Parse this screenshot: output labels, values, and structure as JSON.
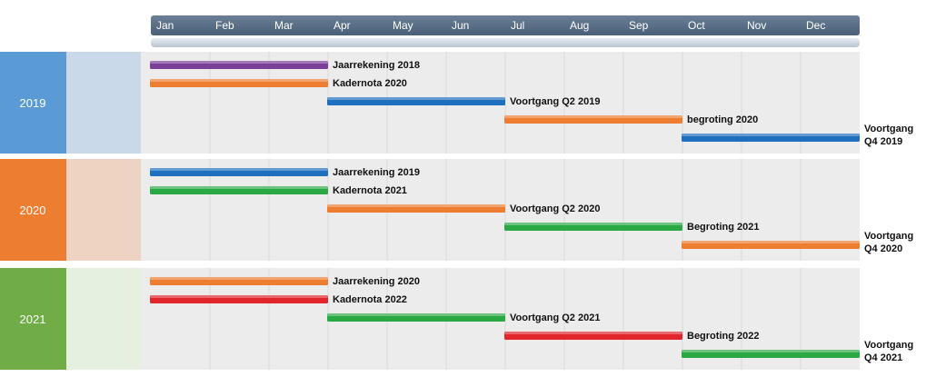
{
  "chart_data": {
    "type": "gantt",
    "months": [
      "Jan",
      "Feb",
      "Mar",
      "Apr",
      "May",
      "Jun",
      "Jul",
      "Aug",
      "Sep",
      "Oct",
      "Nov",
      "Dec"
    ],
    "colors": {
      "purple": "#7b3f98",
      "orange": "#ed7d31",
      "blue": "#1f6fbf",
      "green": "#2aa844",
      "red": "#e0262c",
      "header": "#4a5f78",
      "band_2019": "#5b9bd5",
      "band_2019_light": "#c9d9ea",
      "band_2020": "#ed7d31",
      "band_2020_light": "#eed3c2",
      "band_2021": "#70ad47",
      "band_2021_light": "#e6f0e0"
    },
    "groups": [
      {
        "year": "2019",
        "tasks": [
          {
            "label": "Jaarrekening 2018",
            "start": 0,
            "end": 3,
            "color": "purple"
          },
          {
            "label": "Kadernota 2020",
            "start": 0,
            "end": 3,
            "color": "orange"
          },
          {
            "label": "Voortgang Q2 2019",
            "start": 3,
            "end": 6,
            "color": "blue"
          },
          {
            "label": "begroting 2020",
            "start": 6,
            "end": 9,
            "color": "orange"
          },
          {
            "label": "Voortgang Q4 2019",
            "start": 9,
            "end": 12,
            "color": "blue"
          }
        ]
      },
      {
        "year": "2020",
        "tasks": [
          {
            "label": "Jaarrekening 2019",
            "start": 0,
            "end": 3,
            "color": "blue"
          },
          {
            "label": "Kadernota 2021",
            "start": 0,
            "end": 3,
            "color": "green"
          },
          {
            "label": "Voortgang Q2 2020",
            "start": 3,
            "end": 6,
            "color": "orange"
          },
          {
            "label": "Begroting 2021",
            "start": 6,
            "end": 9,
            "color": "green"
          },
          {
            "label": "Voortgang Q4 2020",
            "start": 9,
            "end": 12,
            "color": "orange"
          }
        ]
      },
      {
        "year": "2021",
        "tasks": [
          {
            "label": "Jaarrekening 2020",
            "start": 0,
            "end": 3,
            "color": "orange"
          },
          {
            "label": "Kadernota 2022",
            "start": 0,
            "end": 3,
            "color": "red"
          },
          {
            "label": "Voortgang Q2 2021",
            "start": 3,
            "end": 6,
            "color": "green"
          },
          {
            "label": "Begroting 2022",
            "start": 6,
            "end": 9,
            "color": "red"
          },
          {
            "label": "Voortgang Q4 2021",
            "start": 9,
            "end": 12,
            "color": "green"
          }
        ]
      }
    ]
  }
}
